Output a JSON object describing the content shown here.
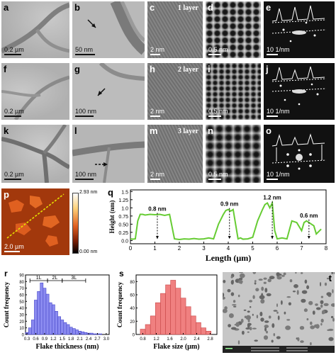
{
  "panels": {
    "a": {
      "label": "a",
      "scale": "0.2 µm"
    },
    "b": {
      "label": "b",
      "scale": "50 nm"
    },
    "c": {
      "label": "c",
      "note": "1 layer",
      "scale": "2 nm"
    },
    "d": {
      "label": "d",
      "scale": "0.5 nm"
    },
    "e": {
      "label": "e",
      "scale": "10 1/nm"
    },
    "f": {
      "label": "f",
      "scale": "0.2 µm"
    },
    "g": {
      "label": "g",
      "scale": "100 nm"
    },
    "h": {
      "label": "h",
      "note": "2 layer",
      "scale": "2 nm"
    },
    "i": {
      "label": "i",
      "scale": "0.5 nm"
    },
    "j": {
      "label": "j",
      "scale": "10 1/nm"
    },
    "k": {
      "label": "k",
      "scale": "0.2 µm"
    },
    "l": {
      "label": "l",
      "scale": "100 nm"
    },
    "m": {
      "label": "m",
      "note": "3 layer",
      "scale": "2 nm"
    },
    "n": {
      "label": "n",
      "scale": "0.5 nm"
    },
    "o": {
      "label": "o",
      "scale": "10 1/nm"
    },
    "p": {
      "label": "p",
      "scale": "2.0 µm",
      "cbar_max": "2.93 nm",
      "cbar_min": "0.00 nm"
    },
    "q": {
      "label": "q"
    },
    "r": {
      "label": "r"
    },
    "s": {
      "label": "s"
    },
    "t": {
      "label": "t"
    }
  },
  "chart_data": [
    {
      "id": "q",
      "type": "line",
      "xlabel": "Length (µm)",
      "ylabel": "Height (nm)",
      "xlim": [
        0,
        8
      ],
      "ylim": [
        -0.1,
        1.55
      ],
      "xticks": [
        "0",
        "1",
        "2",
        "3",
        "4",
        "5",
        "6",
        "7",
        "8"
      ],
      "yticks": [
        "0.0",
        "0.25",
        "0.50",
        "0.75",
        "1.0",
        "1.25",
        "1.5"
      ],
      "x": [
        0,
        0.1,
        0.2,
        0.3,
        0.4,
        0.5,
        0.6,
        0.8,
        1.0,
        1.2,
        1.4,
        1.6,
        1.8,
        2.0,
        2.2,
        2.4,
        2.6,
        2.8,
        3.0,
        3.2,
        3.4,
        3.6,
        3.8,
        3.9,
        4.0,
        4.1,
        4.2,
        4.4,
        4.5,
        4.6,
        4.8,
        5.0,
        5.2,
        5.4,
        5.5,
        5.6,
        5.7,
        5.8,
        5.9,
        6.0,
        6.2,
        6.4,
        6.6,
        6.8,
        7.0,
        7.1,
        7.2,
        7.3,
        7.5,
        7.6,
        7.8
      ],
      "y": [
        0.05,
        0.04,
        0.05,
        0.6,
        0.8,
        0.8,
        0.78,
        0.8,
        0.79,
        0.8,
        0.77,
        0.8,
        0.05,
        0.03,
        0.05,
        0.04,
        0.06,
        0.04,
        0.05,
        0.08,
        0.05,
        0.5,
        0.8,
        0.92,
        0.95,
        0.9,
        0.95,
        0.05,
        0.08,
        0.04,
        0.05,
        0.1,
        0.6,
        0.95,
        1.1,
        1.15,
        1.0,
        1.15,
        0.3,
        0.05,
        0.08,
        0.05,
        0.6,
        0.55,
        0.3,
        0.55,
        0.6,
        0.55,
        0.45,
        0.2,
        0.35
      ],
      "annotations": [
        {
          "text": "0.8 nm",
          "x": 1.1,
          "y": 0.8
        },
        {
          "text": "0.9 nm",
          "x": 4.05,
          "y": 0.95
        },
        {
          "text": "1.2 nm",
          "x": 5.8,
          "y": 1.15
        },
        {
          "text": "0.6 nm",
          "x": 7.3,
          "y": 0.6
        }
      ]
    },
    {
      "id": "r",
      "type": "bar",
      "xlabel": "Flake thickness (nm)",
      "ylabel": "Count frequency",
      "xlim": [
        0.25,
        3.1
      ],
      "ylim": [
        0,
        90
      ],
      "xticks": [
        "0.3",
        "0.6",
        "0.9",
        "1.2",
        "1.5",
        "1.8",
        "2.1",
        "2.4",
        "2.7",
        "3.0"
      ],
      "yticks": [
        "0",
        "10",
        "20",
        "30",
        "40",
        "50",
        "60",
        "70",
        "80",
        "90"
      ],
      "bin_width": 0.1,
      "x": [
        0.3,
        0.4,
        0.5,
        0.6,
        0.7,
        0.8,
        0.9,
        1.0,
        1.1,
        1.2,
        1.3,
        1.4,
        1.5,
        1.6,
        1.7,
        1.8,
        1.9,
        2.0,
        2.1,
        2.2,
        2.3,
        2.4,
        2.5,
        2.6,
        2.7,
        2.8
      ],
      "values": [
        3,
        10,
        22,
        52,
        65,
        78,
        70,
        61,
        48,
        45,
        35,
        27,
        22,
        18,
        15,
        11,
        9,
        7,
        5,
        4,
        3,
        2,
        2,
        1,
        1,
        1
      ],
      "bands": [
        {
          "text": "1L",
          "from": 0.4,
          "to": 1.0
        },
        {
          "text": "2L",
          "from": 1.0,
          "to": 1.5
        },
        {
          "text": "3L",
          "from": 1.5,
          "to": 2.3
        }
      ]
    },
    {
      "id": "s",
      "type": "bar",
      "xlabel": "Flake size (µm)",
      "ylabel": "Count frequency",
      "xlim": [
        0.6,
        3.0
      ],
      "ylim": [
        0,
        90
      ],
      "xticks": [
        "0.8",
        "1.2",
        "1.6",
        "2.0",
        "2.4",
        "2.8"
      ],
      "yticks": [
        "0",
        "20",
        "40",
        "60",
        "80"
      ],
      "bin_width": 0.15,
      "x": [
        0.8,
        0.95,
        1.1,
        1.25,
        1.4,
        1.55,
        1.7,
        1.85,
        2.0,
        2.15,
        2.3,
        2.45,
        2.6,
        2.75
      ],
      "values": [
        8,
        15,
        28,
        48,
        62,
        75,
        82,
        70,
        55,
        42,
        28,
        18,
        10,
        5
      ]
    }
  ]
}
